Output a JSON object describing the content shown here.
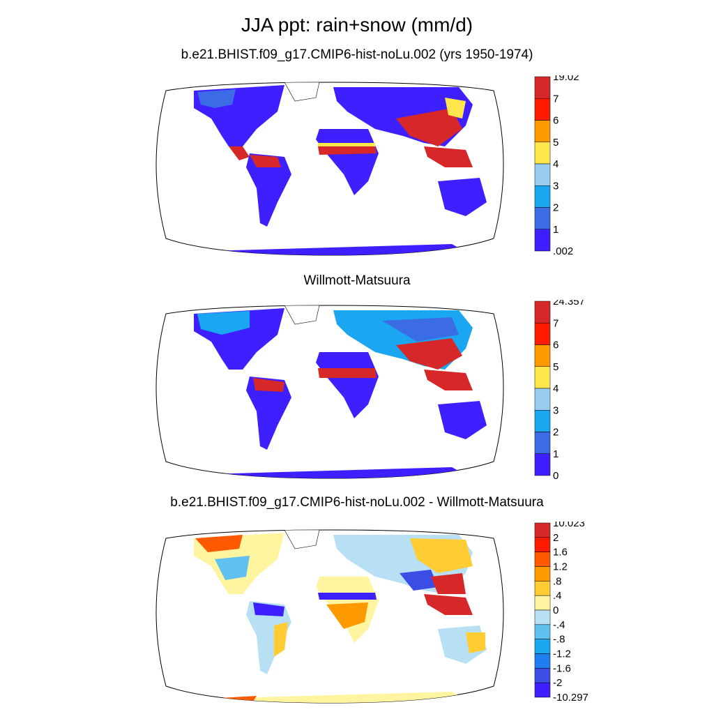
{
  "title": "JJA ppt: rain+snow (mm/d)",
  "panels": [
    {
      "id": "model",
      "title": "b.e21.BHIST.f09_g17.CMIP6-hist-noLu.002 (yrs 1950-1974)",
      "colorbar": {
        "labels": [
          "19.02",
          "7",
          "6",
          "5",
          "4",
          "3",
          "2",
          "1",
          ".002"
        ],
        "colors": [
          "#d62828",
          "#ff1a00",
          "#ff9900",
          "#ffe64d",
          "#99ccf0",
          "#1aa6f0",
          "#3c6be6",
          "#3d1fff"
        ]
      }
    },
    {
      "id": "obs",
      "title": "Willmott-Matsuura",
      "colorbar": {
        "labels": [
          "24.357",
          "7",
          "6",
          "5",
          "4",
          "3",
          "2",
          "1",
          "0"
        ],
        "colors": [
          "#d62828",
          "#ff1a00",
          "#ff9900",
          "#ffe64d",
          "#99ccf0",
          "#1aa6f0",
          "#3c6be6",
          "#3d1fff"
        ]
      }
    },
    {
      "id": "diff",
      "title": "b.e21.BHIST.f09_g17.CMIP6-hist-noLu.002 - Willmott-Matsuura",
      "colorbar": {
        "labels": [
          "10.023",
          "2",
          "1.6",
          "1.2",
          ".8",
          ".4",
          "0",
          "-.4",
          "-.8",
          "-1.2",
          "-1.6",
          "-2",
          "-10.297"
        ],
        "colors": [
          "#d62828",
          "#ff1a00",
          "#ff5a00",
          "#ff9900",
          "#ffcc33",
          "#fff5a0",
          "#b8e0f5",
          "#60c0f0",
          "#1aa6f0",
          "#1f7ff0",
          "#3c4de6",
          "#3d1fff"
        ]
      }
    }
  ]
}
